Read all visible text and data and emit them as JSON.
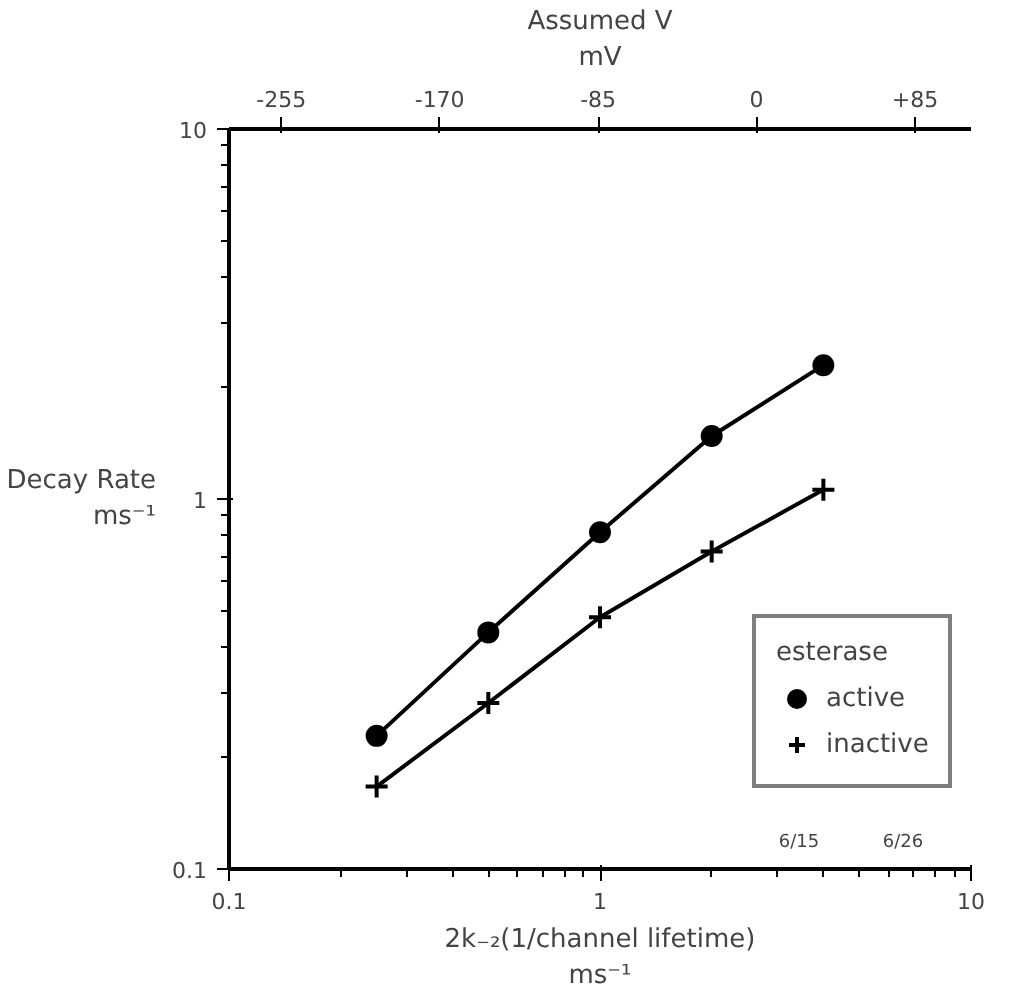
{
  "chart_data": {
    "type": "line",
    "xlabel": "2k₋₂(1/channel lifetime)\nms⁻¹",
    "ylabel": "Decay Rate\nms⁻¹",
    "x2label": "Assumed V\nmV",
    "legend_title": "esterase",
    "legend": "bottom right",
    "log": "xy",
    "grid": false,
    "line_style": "solid",
    "x": [
      0.25,
      0.5,
      1,
      2,
      4
    ],
    "series": [
      {
        "name": "active",
        "color": "#000000",
        "marker": "circle",
        "values": [
          0.229,
          0.436,
          0.813,
          1.48,
          2.3
        ]
      },
      {
        "name": "inactive",
        "color": "#000000",
        "marker": "cross",
        "values": [
          0.167,
          0.281,
          0.479,
          0.721,
          1.06
        ]
      }
    ],
    "xlim": [
      0.1,
      10
    ],
    "ylim": [
      0.1,
      10
    ],
    "xticks": [
      0.1,
      1,
      10
    ],
    "yticks": [
      0.1,
      1,
      10
    ],
    "x2lim": [
      -283,
      115
    ],
    "x2ticks": [
      -255,
      -170,
      -85,
      0,
      {
        "value": 85,
        "label": "+85"
      }
    ],
    "annotations": [
      "6/15",
      "6/26"
    ]
  }
}
